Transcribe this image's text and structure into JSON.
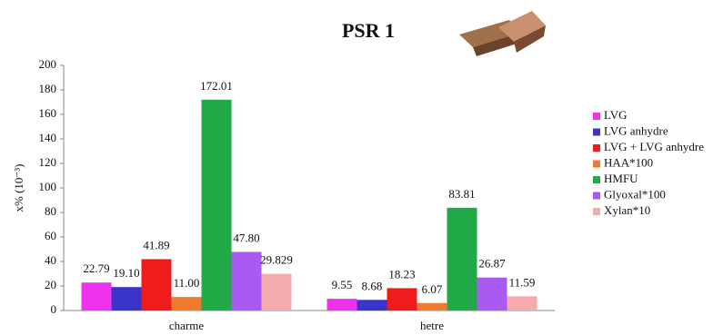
{
  "chart_data": {
    "type": "bar",
    "title": "PSR 1",
    "y_label": "x% (10⁻³)",
    "categories": [
      "charme",
      "hetre"
    ],
    "series": [
      {
        "name": "LVG",
        "color": "#ee33ee",
        "values": [
          22.79,
          9.55
        ],
        "value_labels": [
          "22.79",
          "9.55"
        ]
      },
      {
        "name": "LVG anhydre",
        "color": "#3a35c8",
        "values": [
          19.1,
          8.68
        ],
        "value_labels": [
          "19.10",
          "8.68"
        ]
      },
      {
        "name": "LVG + LVG anhydre",
        "color": "#ee1c1c",
        "values": [
          41.89,
          18.23
        ],
        "value_labels": [
          "41.89",
          "18.23"
        ]
      },
      {
        "name": "HAA*100",
        "color": "#f07a30",
        "values": [
          11,
          6.07
        ],
        "value_labels": [
          "11.00",
          "6.07"
        ]
      },
      {
        "name": "HMFU",
        "color": "#22aa48",
        "values": [
          172.01,
          83.81
        ],
        "value_labels": [
          "172.01",
          "83.81"
        ]
      },
      {
        "name": "Glyoxal*100",
        "color": "#a95af0",
        "values": [
          47.8,
          26.87
        ],
        "value_labels": [
          "47.80",
          "26.87"
        ]
      },
      {
        "name": "Xylan*10",
        "color": "#f5abab",
        "values": [
          29.829,
          11.59
        ],
        "value_labels": [
          "29.829",
          "11.59"
        ]
      }
    ],
    "ylim": [
      0,
      200
    ],
    "yticks": [
      0,
      20,
      40,
      60,
      80,
      100,
      120,
      140,
      160,
      180,
      200
    ],
    "grid": false
  }
}
